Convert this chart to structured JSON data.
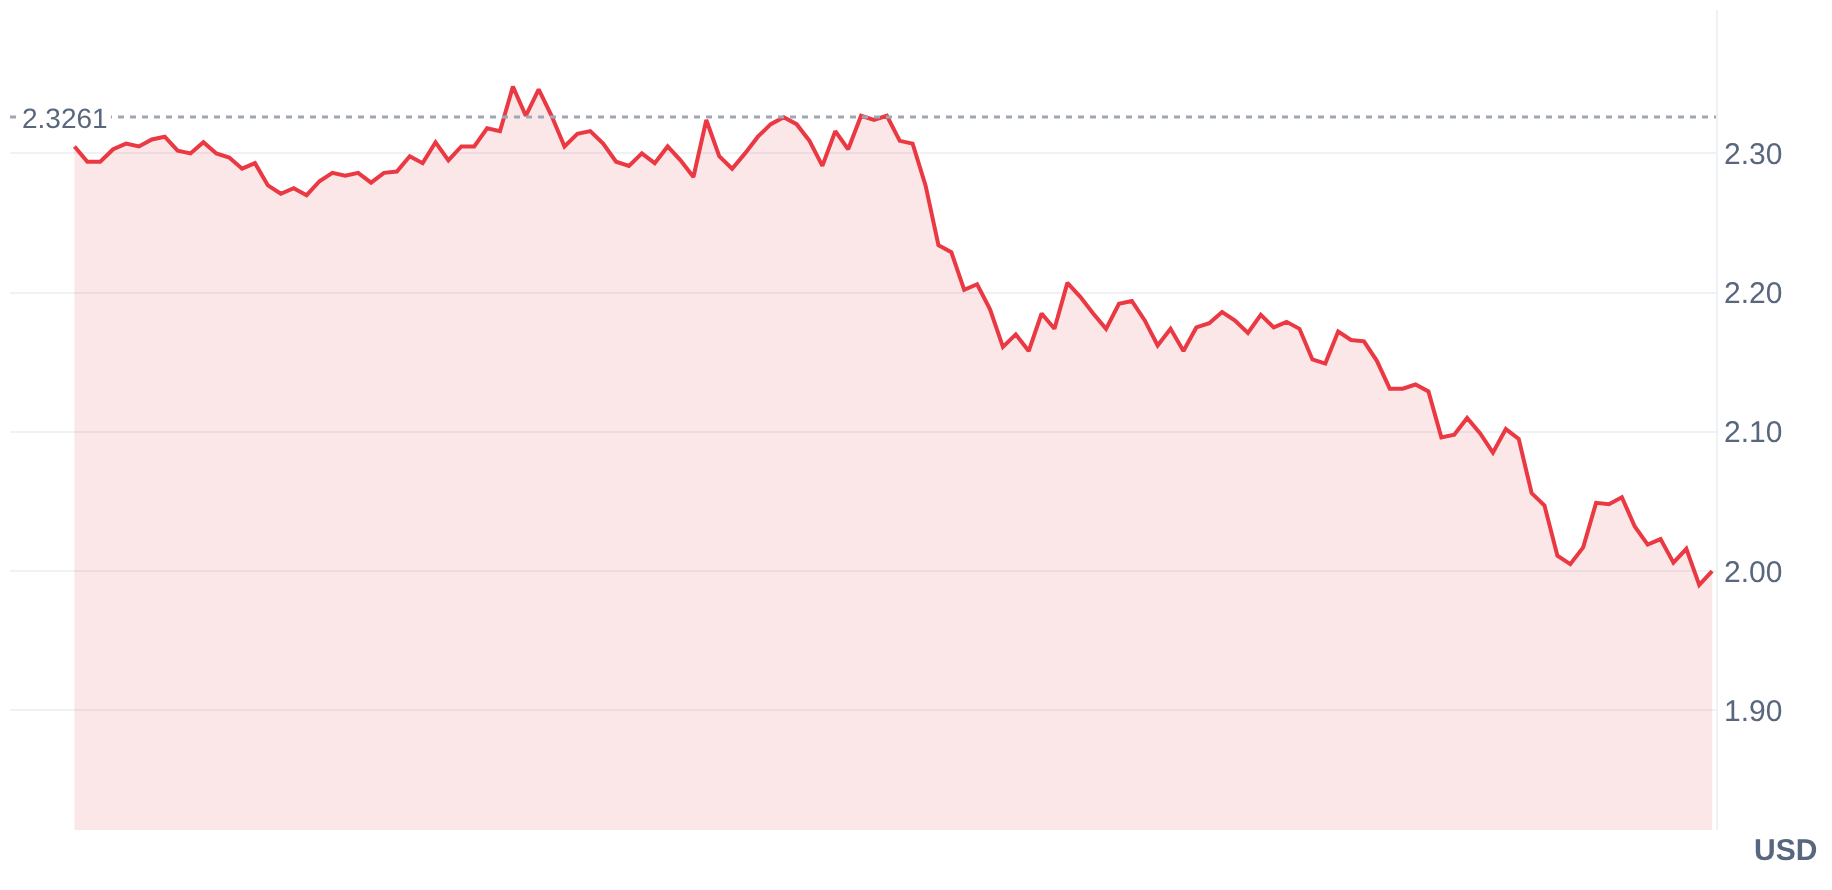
{
  "chart_data": {
    "type": "area",
    "ylabel": "USD",
    "tick_labels": "y",
    "grid": "y",
    "marker": "none",
    "line_style": "solid",
    "ylim": [
      1.814,
      2.403
    ],
    "yticks": [
      {
        "value": 1.9,
        "label": "1.90"
      },
      {
        "value": 2.0,
        "label": "2.00"
      },
      {
        "value": 2.1,
        "label": "2.10"
      },
      {
        "value": 2.2,
        "label": "2.20"
      },
      {
        "value": 2.3,
        "label": "2.30"
      }
    ],
    "ref_lines": [
      {
        "axis": "y",
        "value": 2.3261,
        "label": "2.3261",
        "color": "#a0a7b4",
        "line_style": "dotted"
      }
    ],
    "categories": [
      null,
      null,
      null,
      null,
      null,
      null,
      null,
      null,
      null,
      null,
      null,
      null,
      null,
      null,
      null,
      null,
      null,
      null,
      null,
      null,
      null,
      null,
      null,
      null,
      null,
      null,
      null,
      null,
      null,
      null,
      null,
      null,
      null,
      null,
      null,
      null,
      null,
      null,
      null,
      null,
      null,
      null,
      null,
      null,
      null,
      null,
      null,
      null,
      null,
      null,
      null,
      null,
      null,
      null,
      null,
      null,
      null,
      null,
      null,
      null,
      null,
      null,
      null,
      null,
      null,
      null,
      null,
      null,
      null,
      null,
      null,
      null,
      null,
      null,
      null,
      null,
      null,
      null,
      null,
      null,
      null,
      null,
      null,
      null,
      null,
      null,
      null,
      null,
      null,
      null,
      null,
      null,
      null,
      null,
      null,
      null,
      null,
      null,
      null,
      null,
      null,
      null,
      null,
      null,
      null,
      null,
      null,
      null,
      null,
      null,
      null,
      null,
      null,
      null,
      null,
      null,
      null,
      null,
      null,
      null,
      null,
      null,
      null,
      null,
      null,
      null,
      null,
      null
    ],
    "series": [
      {
        "color": "#ea3943",
        "values": [
          2.305,
          2.294,
          2.294,
          2.303,
          2.307,
          2.305,
          2.31,
          2.312,
          2.302,
          2.3,
          2.308,
          2.3,
          2.297,
          2.289,
          2.293,
          2.277,
          2.271,
          2.275,
          2.27,
          2.28,
          2.286,
          2.284,
          2.286,
          2.279,
          2.286,
          2.287,
          2.298,
          2.293,
          2.308,
          2.295,
          2.305,
          2.305,
          2.318,
          2.316,
          2.348,
          2.327,
          2.346,
          2.327,
          2.305,
          2.314,
          2.316,
          2.307,
          2.294,
          2.291,
          2.3,
          2.293,
          2.305,
          2.295,
          2.283,
          2.324,
          2.298,
          2.289,
          2.3,
          2.312,
          2.321,
          2.326,
          2.321,
          2.309,
          2.291,
          2.316,
          2.303,
          2.327,
          2.324,
          2.327,
          2.309,
          2.307,
          2.277,
          2.234,
          2.229,
          2.202,
          2.206,
          2.188,
          2.161,
          2.17,
          2.158,
          2.185,
          2.174,
          2.207,
          2.197,
          2.185,
          2.174,
          2.192,
          2.194,
          2.18,
          2.162,
          2.174,
          2.158,
          2.175,
          2.178,
          2.186,
          2.18,
          2.171,
          2.184,
          2.175,
          2.179,
          2.174,
          2.152,
          2.149,
          2.172,
          2.166,
          2.165,
          2.151,
          2.131,
          2.131,
          2.134,
          2.129,
          2.096,
          2.098,
          2.11,
          2.099,
          2.085,
          2.102,
          2.095,
          2.056,
          2.047,
          2.011,
          2.005,
          2.017,
          2.049,
          2.048,
          2.053,
          2.032,
          2.019,
          2.023,
          2.006,
          2.016,
          1.99,
          2.0
        ]
      }
    ]
  }
}
